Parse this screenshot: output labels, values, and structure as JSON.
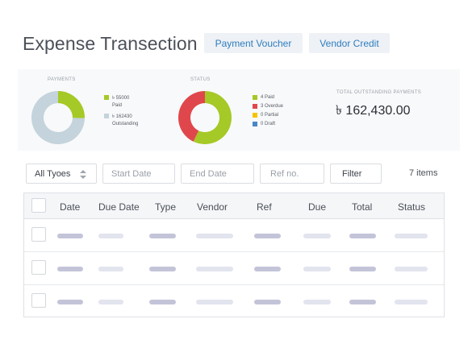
{
  "header": {
    "title": "Expense Transection",
    "buttons": {
      "payment_voucher": "Payment Voucher",
      "vendor_credit": "Vendor Credit"
    }
  },
  "summary": {
    "payments": {
      "label": "PAYMENTS",
      "legend": [
        {
          "amount": "৳ 55000",
          "text": "Paid",
          "color": "#a5c926"
        },
        {
          "amount": "৳ 162430",
          "text": "Outstanding",
          "color": "#c4d3dc"
        }
      ],
      "values": [
        55000,
        162430
      ]
    },
    "status": {
      "label": "STATUS",
      "legend": [
        {
          "text": "4 Paid",
          "color": "#a5c926",
          "value": 4
        },
        {
          "text": "3 Overdue",
          "color": "#e0474c",
          "value": 3
        },
        {
          "text": "0 Partial",
          "color": "#f5c400",
          "value": 0
        },
        {
          "text": "0 Draft",
          "color": "#4a86c5",
          "value": 0
        }
      ]
    },
    "outstanding": {
      "label": "TOTAL OUTSTANDING PAYMENTS",
      "amount": "৳ 162,430.00"
    }
  },
  "filters": {
    "types": "All Tyoes",
    "start_date": "Start Date",
    "end_date": "End Date",
    "ref": "Ref no.",
    "filter_button": "Filter",
    "items_count": "7 items"
  },
  "table": {
    "headers": [
      "Date",
      "Due Date",
      "Type",
      "Vendor",
      "Ref",
      "Due",
      "Total",
      "Status"
    ],
    "row_count": 3
  }
}
